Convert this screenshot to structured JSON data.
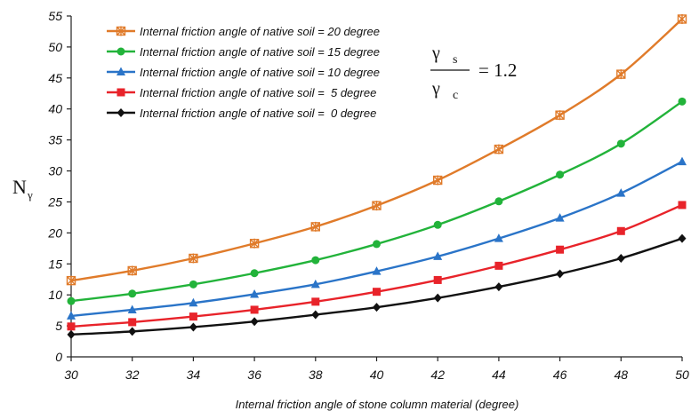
{
  "chart_data": {
    "type": "line",
    "xlabel": "Internal friction angle of stone column material (degree)",
    "ylabel": "N",
    "ylabel_sub": "γ",
    "x": [
      30,
      32,
      34,
      36,
      38,
      40,
      42,
      44,
      46,
      48,
      50
    ],
    "xlim": [
      30,
      50
    ],
    "ylim": [
      0,
      55
    ],
    "yticks": [
      0,
      5,
      10,
      15,
      20,
      25,
      30,
      35,
      40,
      45,
      50,
      55
    ],
    "grid": false,
    "legend_position": "top-left",
    "annotation": {
      "numerator": "γ",
      "numerator_sub": "s",
      "denominator": "γ",
      "denominator_sub": "c",
      "value": "= 1.2"
    },
    "series": [
      {
        "name": "Internal friction angle of native soil = 20 degree",
        "color": "#e07b2a",
        "marker": "star",
        "values": [
          12.3,
          13.9,
          15.9,
          18.3,
          21.0,
          24.4,
          28.5,
          33.5,
          39.0,
          45.6,
          54.5
        ]
      },
      {
        "name": "Internal friction angle of native soil = 15 degree",
        "color": "#22b33a",
        "marker": "circle",
        "values": [
          9.0,
          10.2,
          11.7,
          13.5,
          15.6,
          18.2,
          21.3,
          25.1,
          29.4,
          34.4,
          41.2
        ]
      },
      {
        "name": "Internal friction angle of native soil = 10 degree",
        "color": "#2a74c8",
        "marker": "triangle",
        "values": [
          6.6,
          7.6,
          8.7,
          10.1,
          11.7,
          13.8,
          16.2,
          19.1,
          22.4,
          26.4,
          31.5
        ]
      },
      {
        "name": "Internal friction angle of native soil =  5 degree",
        "color": "#e8232a",
        "marker": "square",
        "values": [
          4.9,
          5.6,
          6.5,
          7.6,
          8.9,
          10.5,
          12.4,
          14.7,
          17.3,
          20.3,
          24.5
        ]
      },
      {
        "name": "Internal friction angle of native soil =  0 degree",
        "color": "#111111",
        "marker": "diamond",
        "values": [
          3.6,
          4.1,
          4.8,
          5.7,
          6.8,
          8.0,
          9.5,
          11.3,
          13.4,
          15.9,
          19.1
        ]
      }
    ]
  }
}
